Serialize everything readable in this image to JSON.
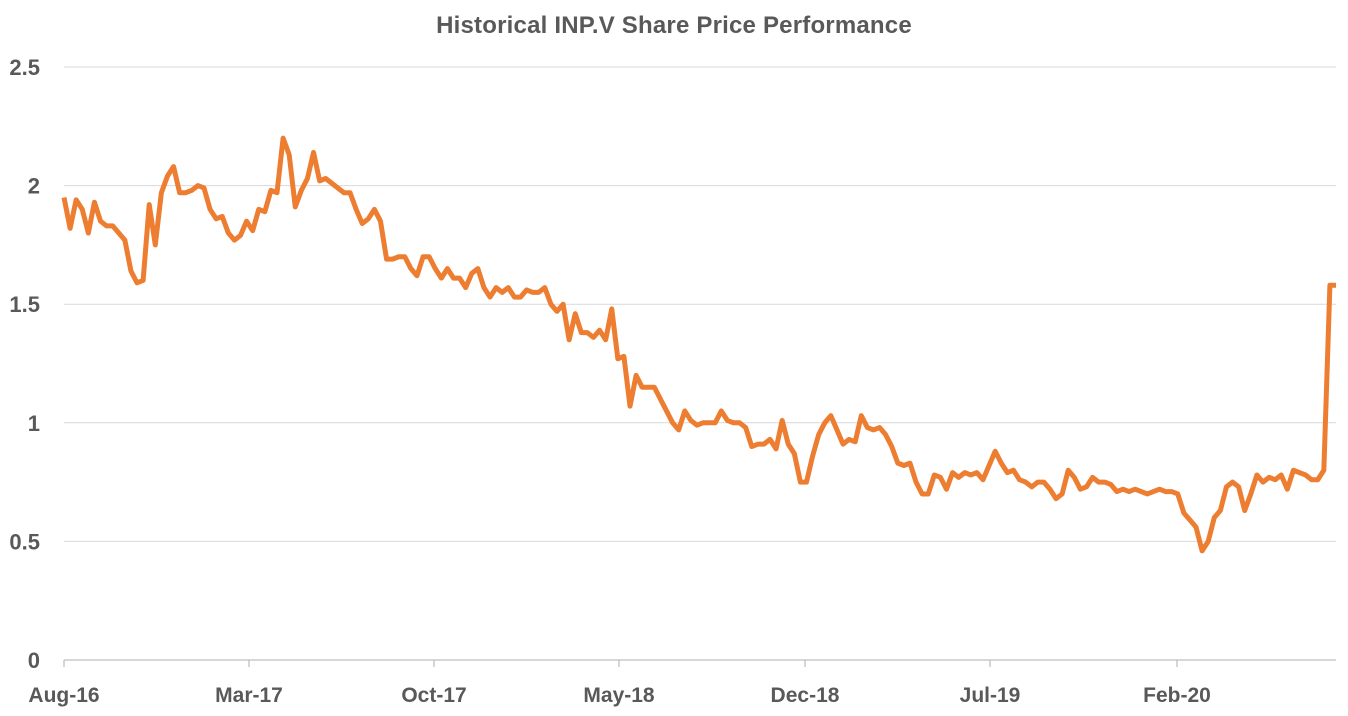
{
  "chart_data": {
    "type": "line",
    "title": "Historical INP.V Share Price Performance",
    "xlabel": "",
    "ylabel": "",
    "ylim": [
      0,
      2.5
    ],
    "yticks": [
      "0",
      "0.5",
      "1",
      "1.5",
      "2",
      "2.5"
    ],
    "ytick_values": [
      0,
      0.5,
      1,
      1.5,
      2,
      2.5
    ],
    "xticks": [
      "Aug-16",
      "Mar-17",
      "Oct-17",
      "May-18",
      "Dec-18",
      "Jul-19",
      "Feb-20"
    ],
    "grid": true,
    "line_color": "#ED7D31",
    "series": [
      {
        "name": "INP.V",
        "values": [
          1.95,
          1.82,
          1.94,
          1.9,
          1.8,
          1.93,
          1.85,
          1.83,
          1.83,
          1.8,
          1.77,
          1.64,
          1.59,
          1.6,
          1.92,
          1.75,
          1.97,
          2.04,
          2.08,
          1.97,
          1.97,
          1.98,
          2.0,
          1.99,
          1.9,
          1.86,
          1.87,
          1.8,
          1.77,
          1.79,
          1.85,
          1.81,
          1.9,
          1.89,
          1.98,
          1.97,
          2.2,
          2.13,
          1.91,
          1.98,
          2.03,
          2.14,
          2.02,
          2.03,
          2.01,
          1.99,
          1.97,
          1.97,
          1.9,
          1.84,
          1.86,
          1.9,
          1.85,
          1.69,
          1.69,
          1.7,
          1.7,
          1.65,
          1.62,
          1.7,
          1.7,
          1.65,
          1.61,
          1.65,
          1.61,
          1.61,
          1.57,
          1.63,
          1.65,
          1.57,
          1.53,
          1.57,
          1.55,
          1.57,
          1.53,
          1.53,
          1.56,
          1.55,
          1.55,
          1.57,
          1.5,
          1.47,
          1.5,
          1.35,
          1.46,
          1.38,
          1.38,
          1.36,
          1.39,
          1.35,
          1.48,
          1.27,
          1.28,
          1.07,
          1.2,
          1.15,
          1.15,
          1.15,
          1.1,
          1.05,
          1.0,
          0.97,
          1.05,
          1.01,
          0.99,
          1.0,
          1.0,
          1.0,
          1.05,
          1.01,
          1.0,
          1.0,
          0.98,
          0.9,
          0.91,
          0.91,
          0.93,
          0.89,
          1.01,
          0.91,
          0.87,
          0.75,
          0.75,
          0.86,
          0.95,
          1.0,
          1.03,
          0.97,
          0.91,
          0.93,
          0.92,
          1.03,
          0.98,
          0.97,
          0.98,
          0.95,
          0.9,
          0.83,
          0.82,
          0.83,
          0.75,
          0.7,
          0.7,
          0.78,
          0.77,
          0.72,
          0.79,
          0.77,
          0.79,
          0.78,
          0.79,
          0.76,
          0.82,
          0.88,
          0.83,
          0.79,
          0.8,
          0.76,
          0.75,
          0.73,
          0.75,
          0.75,
          0.72,
          0.68,
          0.7,
          0.8,
          0.77,
          0.72,
          0.73,
          0.77,
          0.75,
          0.75,
          0.74,
          0.71,
          0.72,
          0.71,
          0.72,
          0.71,
          0.7,
          0.71,
          0.72,
          0.71,
          0.71,
          0.7,
          0.62,
          0.59,
          0.56,
          0.46,
          0.5,
          0.6,
          0.63,
          0.73,
          0.75,
          0.73,
          0.63,
          0.7,
          0.78,
          0.75,
          0.77,
          0.76,
          0.78,
          0.72,
          0.8,
          0.79,
          0.78,
          0.76,
          0.76,
          0.8,
          1.58,
          1.58
        ]
      }
    ]
  }
}
